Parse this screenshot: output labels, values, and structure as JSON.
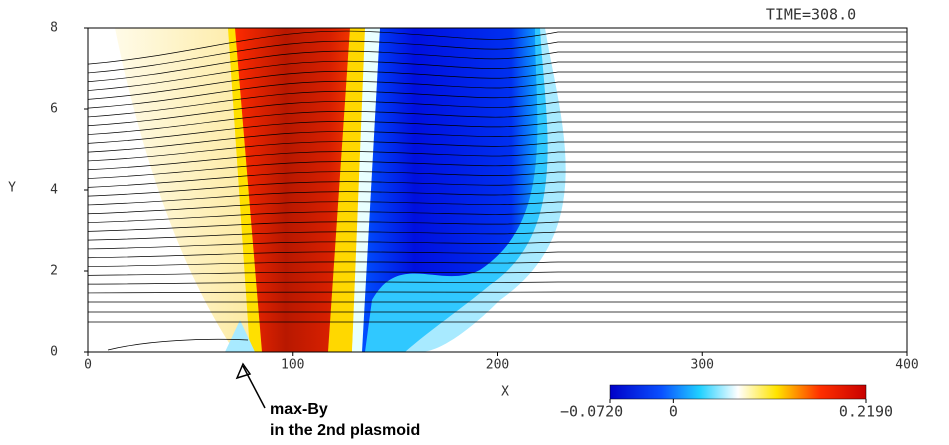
{
  "chart_data": {
    "type": "contour",
    "title": "TIME=308.0",
    "x_label": "X",
    "y_label": "Y",
    "xlim": [
      0,
      400
    ],
    "xticks": [
      0,
      100,
      200,
      300,
      400
    ],
    "ylim": [
      0,
      8
    ],
    "yticks": [
      0,
      2,
      4,
      6,
      8
    ],
    "colorbar": {
      "lim": [
        -0.072,
        0.219
      ],
      "ticks": [
        {
          "value": -0.072,
          "label": "−0.0720"
        },
        0,
        {
          "value": 0.219,
          "label": "0.2190"
        }
      ]
    },
    "annotation": [
      "max-By",
      "in the 2nd plasmoid"
    ]
  }
}
